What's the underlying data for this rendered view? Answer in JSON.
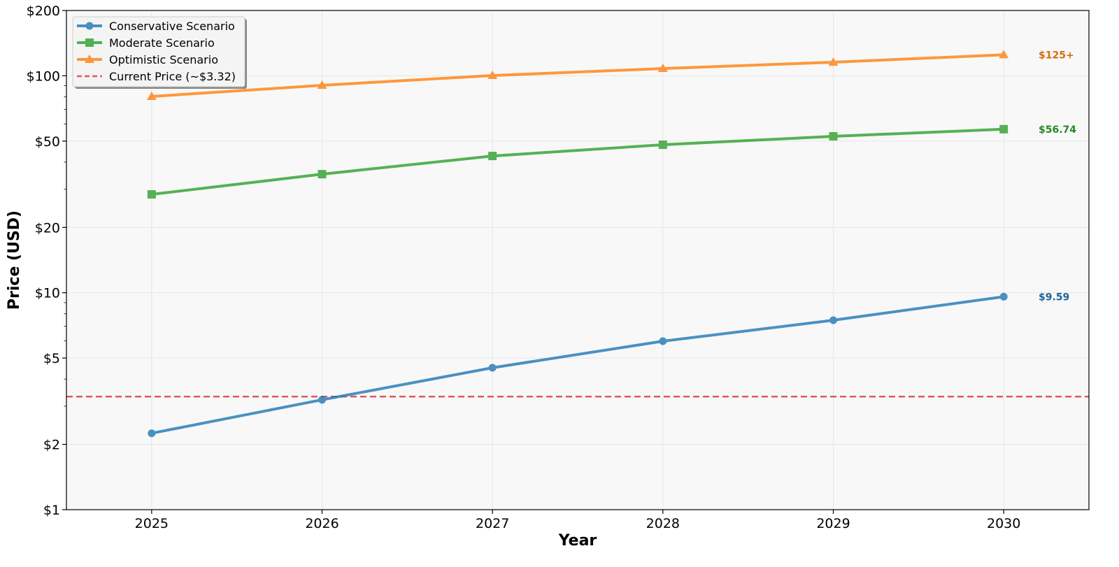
{
  "chart_data": {
    "type": "line",
    "title": "",
    "xlabel": "Year",
    "ylabel": "Price (USD)",
    "x": [
      2025,
      2026,
      2027,
      2028,
      2029,
      2030
    ],
    "xlim": [
      2024.5,
      2030.5
    ],
    "ylim": [
      1,
      200
    ],
    "yscale": "log",
    "grid": true,
    "legend_position": "top-left",
    "y_ticks": [
      1,
      2,
      5,
      10,
      20,
      50,
      100,
      200
    ],
    "y_tick_labels": [
      "$1",
      "$2",
      "$5",
      "$10",
      "$20",
      "$50",
      "$100",
      "$200"
    ],
    "x_tick_labels": [
      "2025",
      "2026",
      "2027",
      "2028",
      "2029",
      "2030"
    ],
    "series": [
      {
        "name": "Conservative Scenario",
        "color": "#1f77b4",
        "marker": "circle",
        "values": [
          2.25,
          3.21,
          4.51,
          5.98,
          7.47,
          9.59
        ],
        "end_label": "$9.59"
      },
      {
        "name": "Moderate Scenario",
        "color": "#2ca02c",
        "marker": "square",
        "values": [
          28.4,
          35.2,
          42.7,
          48.1,
          52.6,
          56.74
        ],
        "end_label": "$56.74"
      },
      {
        "name": "Optimistic Scenario",
        "color": "#ff7f0e",
        "marker": "triangle",
        "values": [
          80.3,
          90.4,
          100.3,
          108,
          115.5,
          125
        ],
        "end_label": "$125+"
      }
    ],
    "reference_line": {
      "name": "Current Price (~$3.32)",
      "value": 3.32,
      "color": "#d62728",
      "style": "dashed"
    }
  }
}
